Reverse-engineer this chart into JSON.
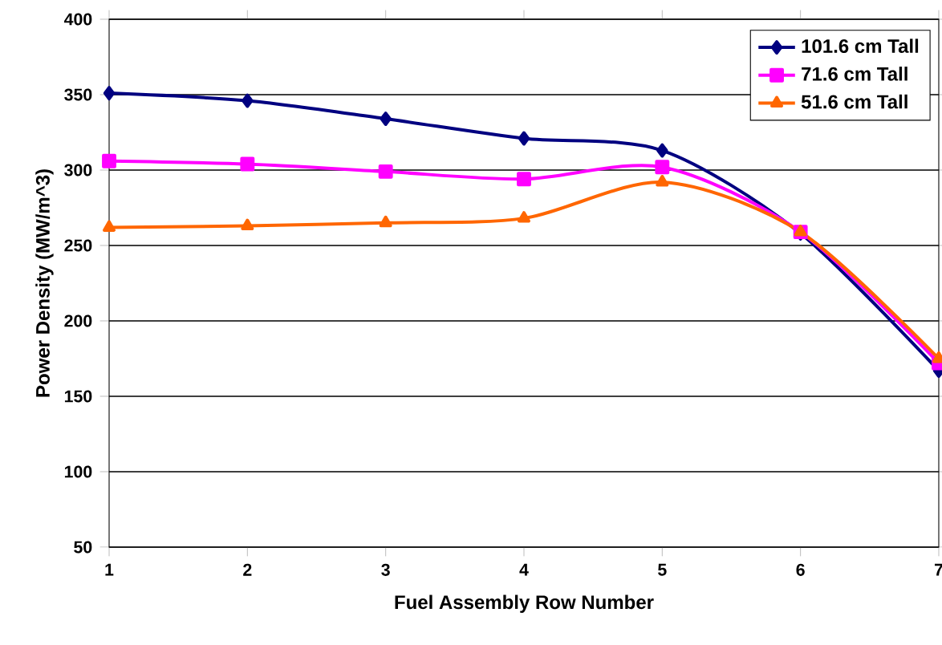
{
  "chart_data": {
    "type": "line",
    "xlabel": "Fuel Assembly Row Number",
    "ylabel": "Power Density (MW/m^3)",
    "x": [
      1,
      2,
      3,
      4,
      5,
      6,
      7
    ],
    "xlim": [
      1,
      7
    ],
    "xticks": [
      1,
      2,
      3,
      4,
      5,
      6,
      7
    ],
    "ylim": [
      50,
      400
    ],
    "yticks": [
      50,
      100,
      150,
      200,
      250,
      300,
      350,
      400
    ],
    "grid": "y",
    "legend": "top right",
    "line_style": "solid",
    "series": [
      {
        "name": "101.6 cm Tall",
        "color": "#000080",
        "marker": "diamond",
        "values": [
          351,
          346,
          334,
          321,
          313,
          258,
          167
        ]
      },
      {
        "name": "71.6 cm Tall",
        "color": "#ff00ff",
        "marker": "square",
        "values": [
          306,
          304,
          299,
          294,
          302,
          259,
          172
        ]
      },
      {
        "name": "51.6 cm Tall",
        "color": "#ff6600",
        "marker": "triangle",
        "values": [
          262,
          263,
          265,
          268,
          292,
          259,
          175
        ]
      }
    ]
  }
}
